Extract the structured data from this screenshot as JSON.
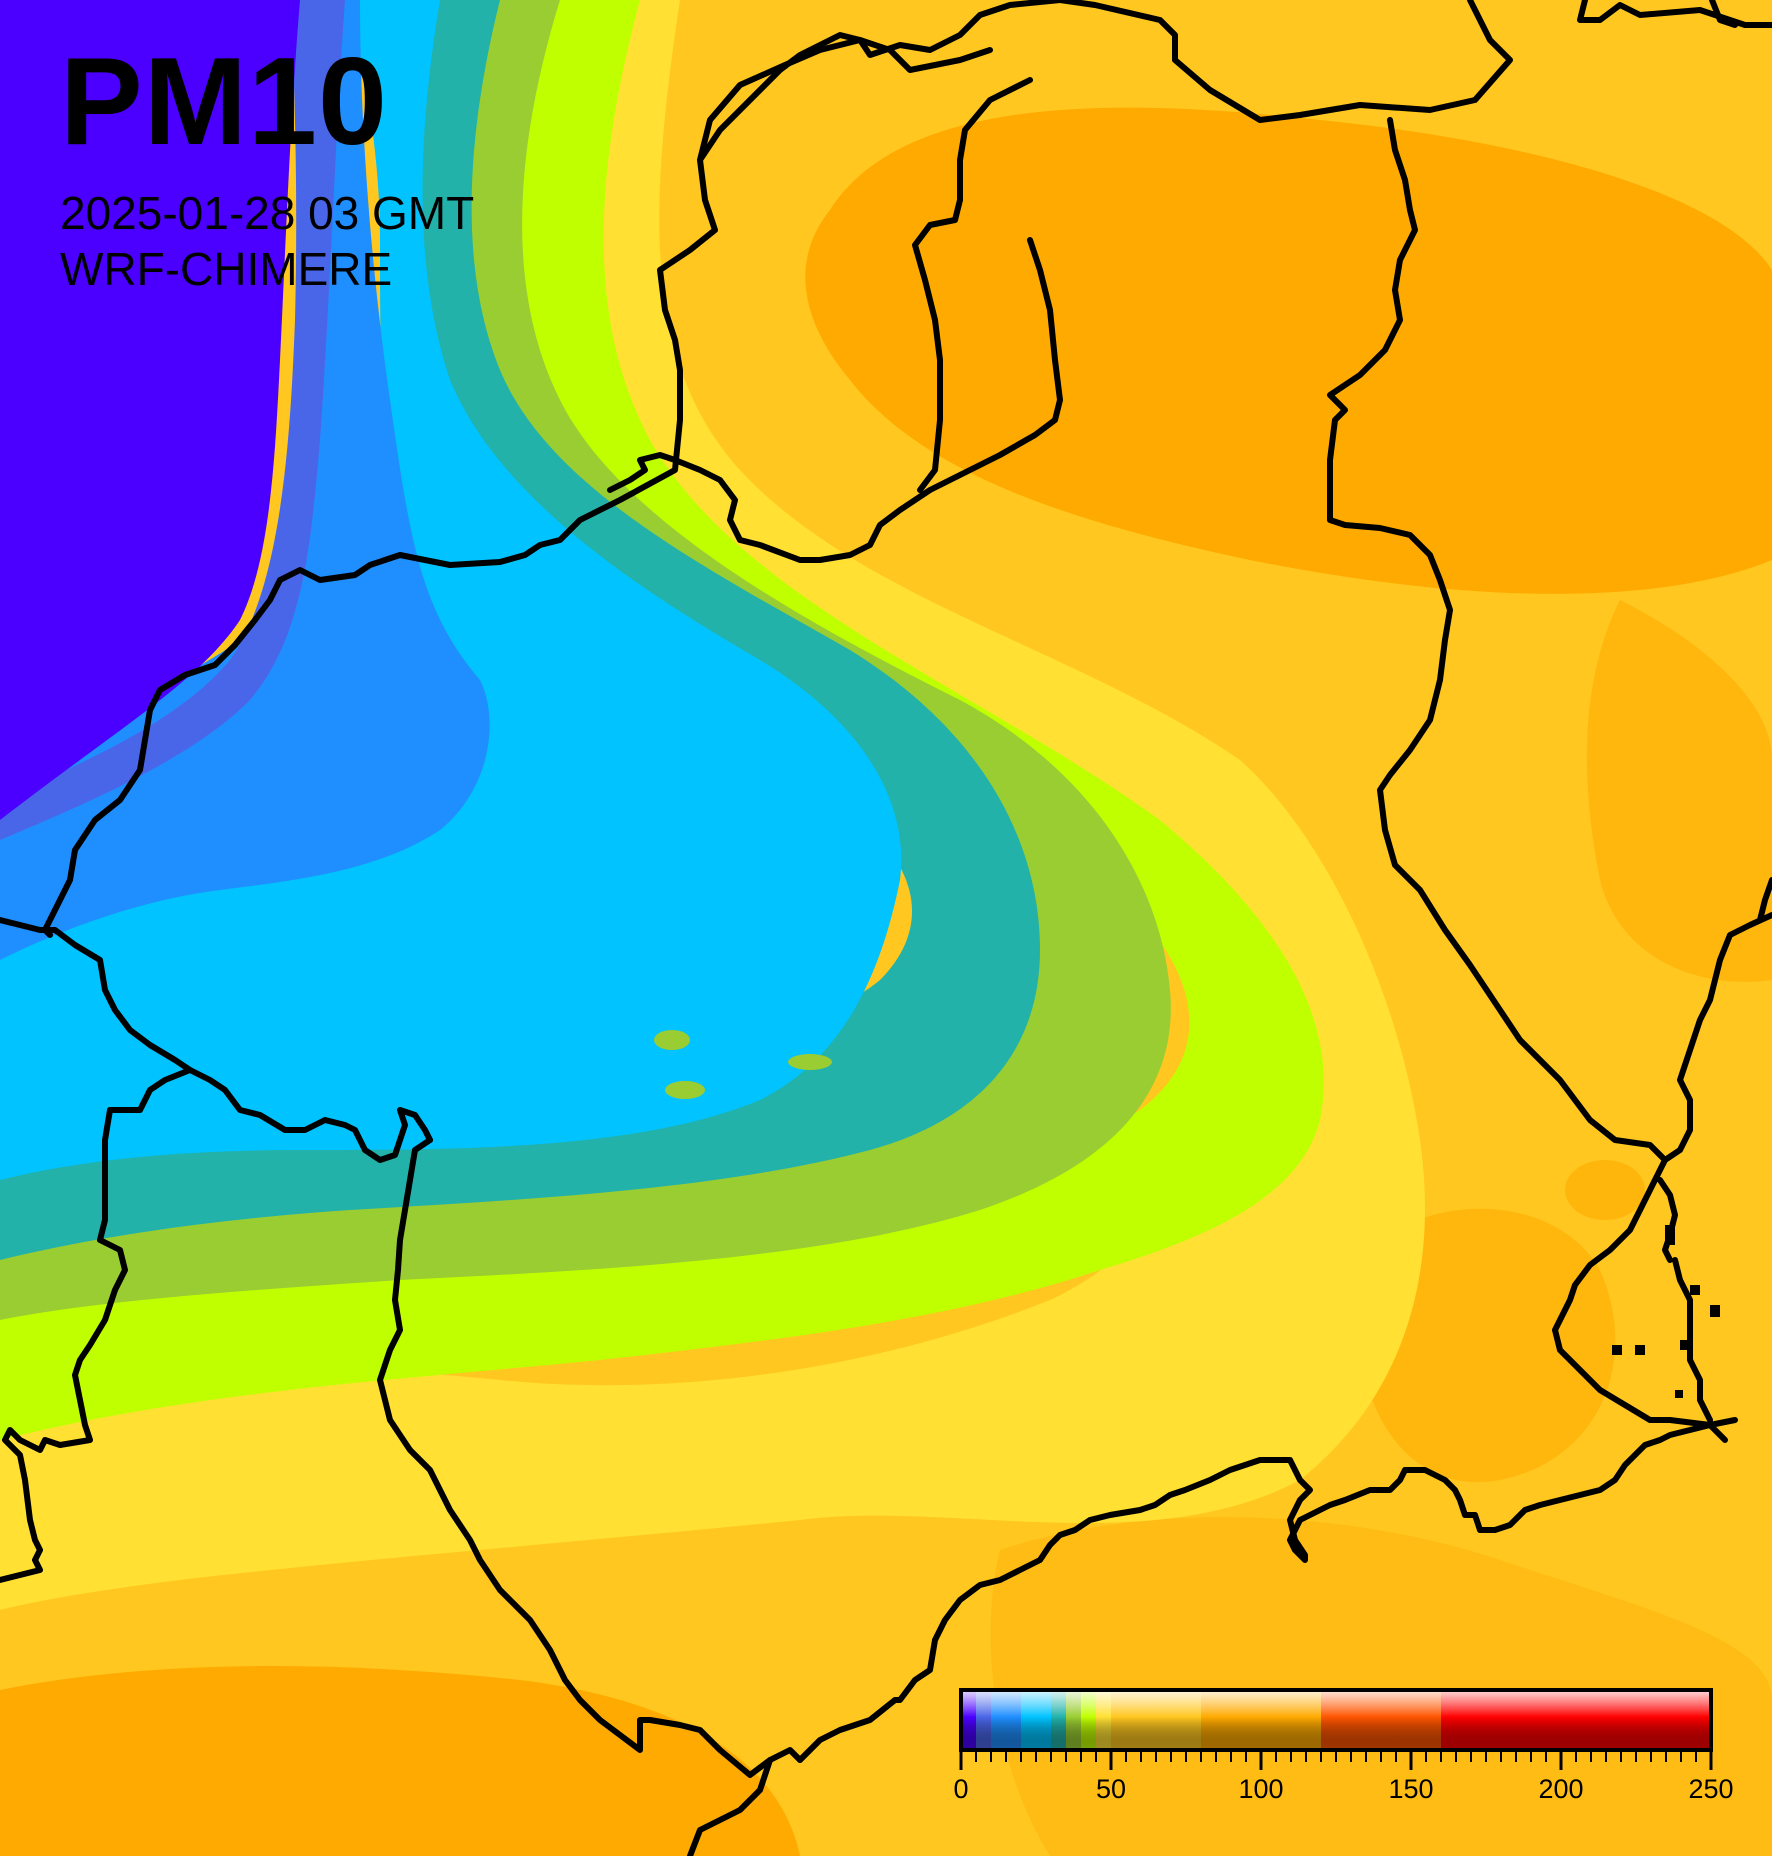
{
  "map": {
    "title": "PM10",
    "datetime": "2025-01-28 03 GMT",
    "model": "WRF-CHIMERE"
  },
  "colorbar": {
    "ticks": [
      "0",
      "50",
      "100",
      "150",
      "200",
      "250"
    ],
    "min": 0,
    "max": 250,
    "bands": [
      {
        "from": 0,
        "to": 5,
        "color": "#4b00ff"
      },
      {
        "from": 5,
        "to": 10,
        "color": "#4a66e8"
      },
      {
        "from": 10,
        "to": 15,
        "color": "#1f8fff"
      },
      {
        "from": 15,
        "to": 20,
        "color": "#1f8fff"
      },
      {
        "from": 20,
        "to": 25,
        "color": "#00c3ff"
      },
      {
        "from": 25,
        "to": 30,
        "color": "#00c3ff"
      },
      {
        "from": 30,
        "to": 35,
        "color": "#22b2aa"
      },
      {
        "from": 35,
        "to": 40,
        "color": "#9acd32"
      },
      {
        "from": 40,
        "to": 45,
        "color": "#c0ff00"
      },
      {
        "from": 45,
        "to": 50,
        "color": "#ffe033"
      },
      {
        "from": 50,
        "to": 80,
        "color": "#ffc71f"
      },
      {
        "from": 80,
        "to": 120,
        "color": "#ffaa00"
      },
      {
        "from": 120,
        "to": 160,
        "color": "#ff5500"
      },
      {
        "from": 160,
        "to": 250,
        "color": "#ff0000"
      }
    ]
  },
  "colors": {
    "very_low": "#4b00ff",
    "low_blue": "#4a66e8",
    "mid_blue": "#1f8fff",
    "cyan": "#00c3ff",
    "teal": "#22b2aa",
    "green": "#9acd32",
    "lime": "#c0ff00",
    "light_yellow": "#ffe033",
    "yellow_orange": "#ffc71f",
    "orange": "#ffaa00",
    "border": "#000000"
  }
}
